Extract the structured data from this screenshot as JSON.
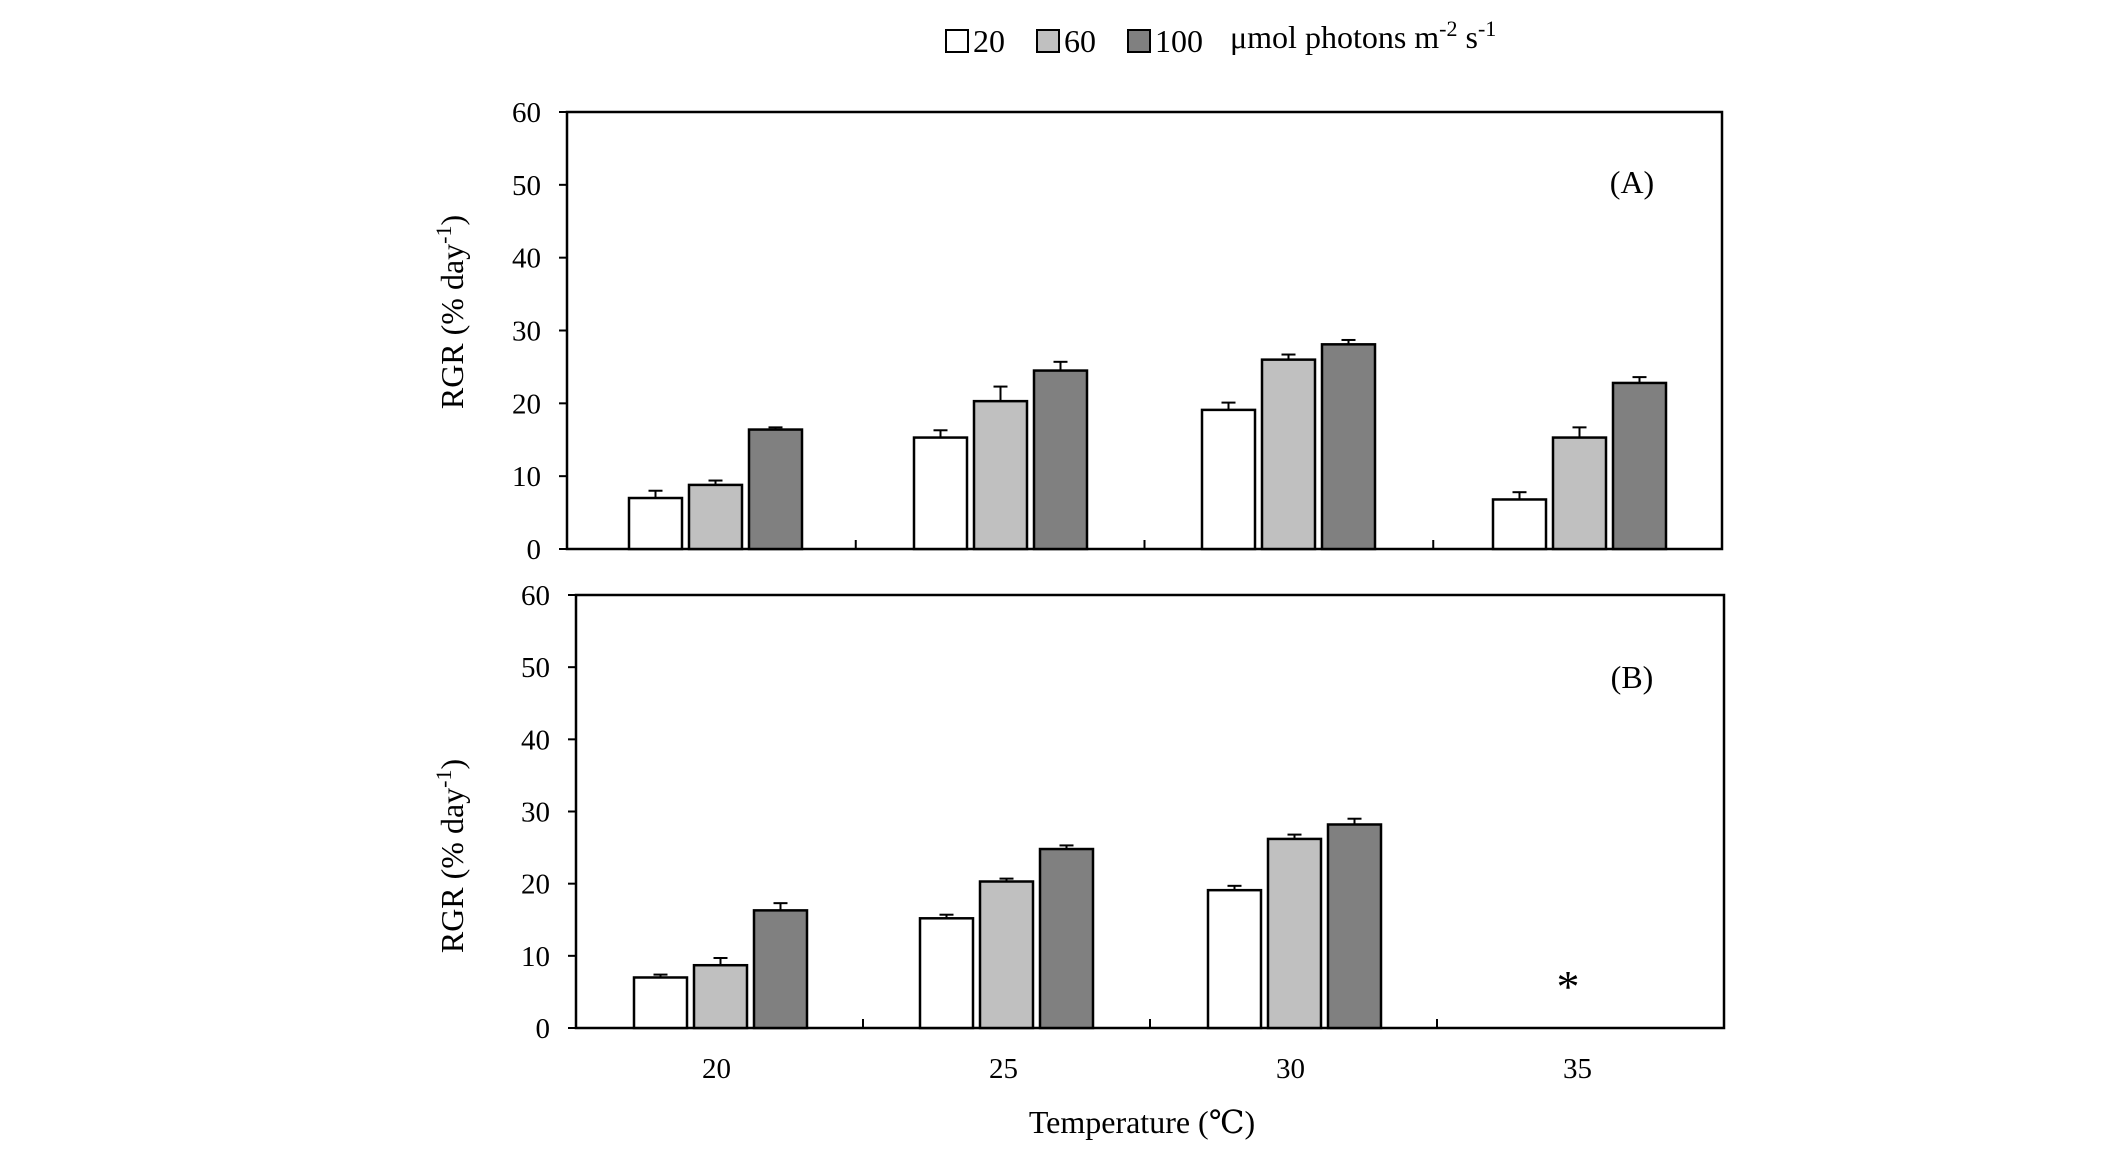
{
  "legend": {
    "entries": [
      {
        "label": "20",
        "color": "#ffffff"
      },
      {
        "label": "60",
        "color": "#c0c0c0"
      },
      {
        "label": "100",
        "color": "#808080"
      }
    ],
    "unit_prefix": "μmol photons m",
    "unit_exp1": "-2",
    "unit_mid": " s",
    "unit_exp2": "-1"
  },
  "x_axis": {
    "title": "Temperature (℃)"
  },
  "chart_data": [
    {
      "type": "bar",
      "panel_label": "(A)",
      "categories": [
        "20",
        "25",
        "30",
        "35"
      ],
      "series": [
        {
          "name": "20",
          "values": [
            7.0,
            15.3,
            19.1,
            6.8
          ],
          "errors": [
            1.0,
            1.0,
            1.0,
            1.0
          ]
        },
        {
          "name": "60",
          "values": [
            8.8,
            20.3,
            26.0,
            15.3
          ],
          "errors": [
            0.6,
            2.0,
            0.7,
            1.4
          ]
        },
        {
          "name": "100",
          "values": [
            16.4,
            24.5,
            28.1,
            22.8
          ],
          "errors": [
            0.3,
            1.2,
            0.6,
            0.8
          ]
        }
      ],
      "ylabel_main": "RGR (% day",
      "ylabel_sup": "-1",
      "ylabel_close": ")",
      "ylim": [
        0,
        60
      ],
      "yticks": [
        "0",
        "10",
        "20",
        "30",
        "40",
        "50",
        "60"
      ]
    },
    {
      "type": "bar",
      "panel_label": "(B)",
      "categories": [
        "20",
        "25",
        "30",
        "35"
      ],
      "series": [
        {
          "name": "20",
          "values": [
            7.0,
            15.2,
            19.1,
            null
          ],
          "errors": [
            0.4,
            0.5,
            0.6,
            null
          ]
        },
        {
          "name": "60",
          "values": [
            8.7,
            20.3,
            26.2,
            null
          ],
          "errors": [
            1.0,
            0.4,
            0.6,
            null
          ]
        },
        {
          "name": "100",
          "values": [
            16.3,
            24.8,
            28.2,
            null
          ],
          "errors": [
            1.0,
            0.5,
            0.8,
            null
          ]
        }
      ],
      "annotation": {
        "text": "*",
        "category": "35"
      },
      "ylabel_main": "RGR (% day",
      "ylabel_sup": "-1",
      "ylabel_close": ")",
      "ylim": [
        0,
        60
      ],
      "yticks": [
        "0",
        "10",
        "20",
        "30",
        "40",
        "50",
        "60"
      ]
    }
  ]
}
